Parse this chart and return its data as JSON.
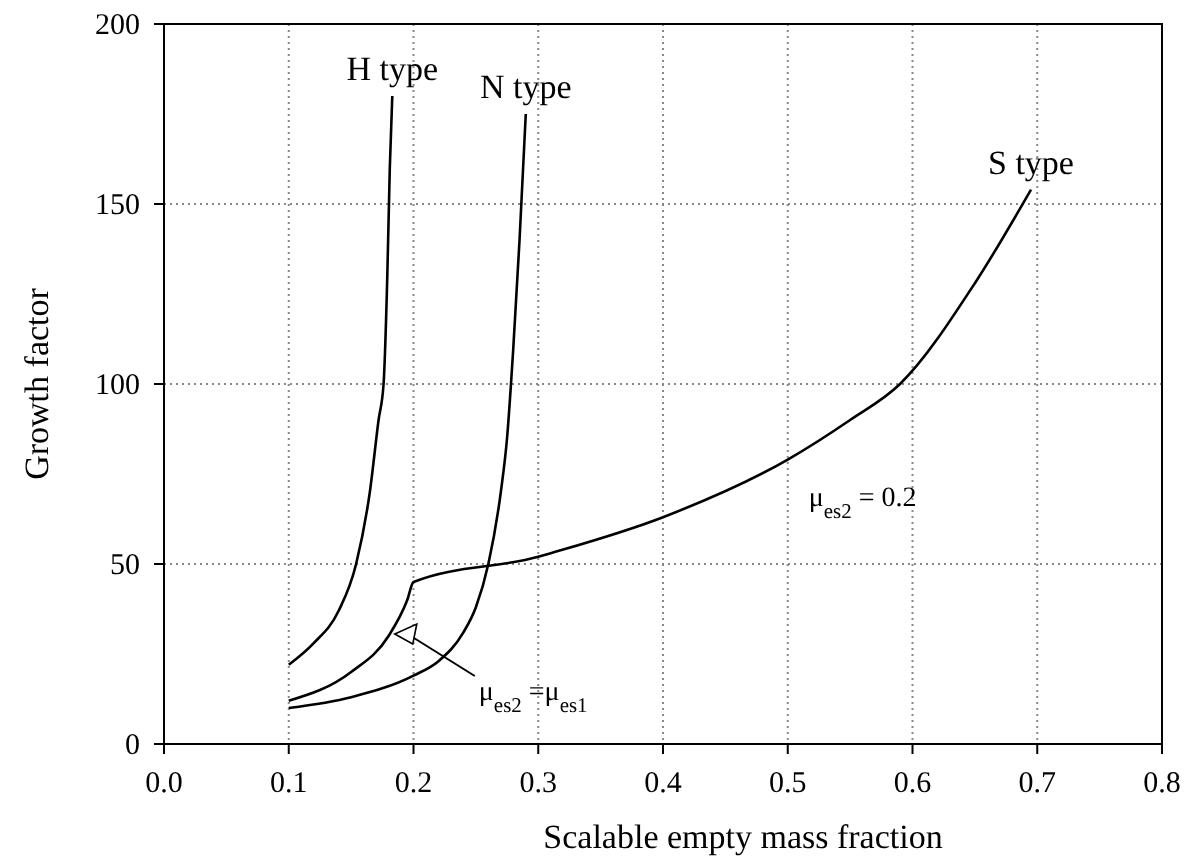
{
  "chart_data": {
    "type": "line",
    "xlabel": "Scalable empty mass fraction",
    "ylabel": "Growth factor",
    "xlim": [
      0,
      0.8
    ],
    "ylim": [
      0,
      200
    ],
    "xticks": [
      {
        "value": 0,
        "label": "0.0"
      },
      {
        "value": 0.1,
        "label": "0.1"
      },
      {
        "value": 0.2,
        "label": "0.2"
      },
      {
        "value": 0.3,
        "label": "0.3"
      },
      {
        "value": 0.4,
        "label": "0.4"
      },
      {
        "value": 0.5,
        "label": "0.5"
      },
      {
        "value": 0.6,
        "label": "0.6"
      },
      {
        "value": 0.7,
        "label": "0.7"
      },
      {
        "value": 0.8,
        "label": "0.8"
      }
    ],
    "yticks": [
      0,
      50,
      100,
      150,
      200
    ],
    "grid": true,
    "marker": "none",
    "line_style": "solid",
    "series": [
      {
        "name": "H type",
        "color": "#000000",
        "x": [
          0.1,
          0.12,
          0.14,
          0.154,
          0.165,
          0.172,
          0.176,
          0.179,
          0.181,
          0.183
        ],
        "values": [
          22,
          28,
          37,
          50,
          70,
          90,
          100,
          130,
          160,
          180
        ]
      },
      {
        "name": "N type",
        "color": "#000000",
        "x": [
          0.1,
          0.15,
          0.2,
          0.22,
          0.24,
          0.25,
          0.26,
          0.27,
          0.275,
          0.28,
          0.285,
          0.29
        ],
        "values": [
          10,
          13,
          19,
          23,
          31,
          38,
          50,
          70,
          85,
          110,
          140,
          175
        ]
      },
      {
        "name": "S type",
        "color": "#000000",
        "x": [
          0.1,
          0.15,
          0.18,
          0.195,
          0.2,
          0.3,
          0.31,
          0.4,
          0.5,
          0.55,
          0.59,
          0.65,
          0.695
        ],
        "values": [
          12,
          20,
          30,
          40,
          45,
          52,
          53,
          63,
          79,
          90,
          100,
          128,
          154
        ]
      }
    ],
    "annotations": [
      {
        "text": "μ$_{es2}$ =μ$_{es1}$",
        "x": 0.185,
        "y": 30
      },
      "μ$_{es2}$ = 0.2"
    ]
  }
}
